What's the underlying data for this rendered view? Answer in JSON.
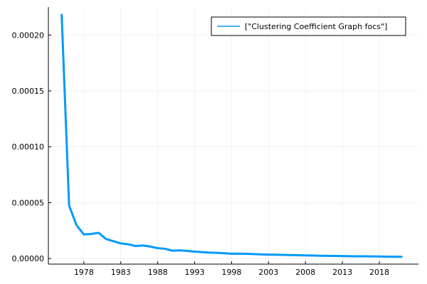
{
  "chart_data": {
    "type": "line",
    "title": "",
    "xlabel": "",
    "ylabel": "",
    "xlim": [
      1973.2,
      2023.3
    ],
    "ylim": [
      -5e-06,
      0.000225
    ],
    "x_ticks": [
      1978,
      1983,
      1988,
      1993,
      1998,
      2003,
      2008,
      2013,
      2018
    ],
    "x_tick_labels": [
      "1978",
      "1983",
      "1988",
      "1993",
      "1998",
      "2003",
      "2008",
      "2013",
      "2018"
    ],
    "y_ticks": [
      0.0,
      5e-05,
      0.0001,
      0.00015,
      0.0002
    ],
    "y_tick_labels": [
      "0.00000",
      "0.00005",
      "0.00010",
      "0.00015",
      "0.00020"
    ],
    "grid": true,
    "legend_position": "top-right",
    "series": [
      {
        "name": "[\"Clustering Coefficient Graph focs\"]",
        "color": "#009AFA",
        "x": [
          1975,
          1976,
          1977,
          1978,
          1979,
          1980,
          1981,
          1982,
          1983,
          1984,
          1985,
          1986,
          1987,
          1988,
          1989,
          1990,
          1991,
          1992,
          1993,
          1994,
          1995,
          1996,
          1997,
          1998,
          1999,
          2000,
          2001,
          2002,
          2003,
          2004,
          2005,
          2006,
          2007,
          2008,
          2009,
          2010,
          2011,
          2012,
          2013,
          2014,
          2015,
          2016,
          2017,
          2018,
          2019,
          2020,
          2021
        ],
        "y": [
          0.000218,
          4.75e-05,
          3e-05,
          2.15e-05,
          2.2e-05,
          2.3e-05,
          1.75e-05,
          1.55e-05,
          1.35e-05,
          1.28e-05,
          1.12e-05,
          1.17e-05,
          1.07e-05,
          9.3e-06,
          8.7e-06,
          7e-06,
          7.3e-06,
          6.8e-06,
          6.2e-06,
          5.7e-06,
          5.3e-06,
          5.1e-06,
          4.8e-06,
          4.3e-06,
          4.4e-06,
          4.2e-06,
          4e-06,
          3.7e-06,
          3.5e-06,
          3.4e-06,
          3.3e-06,
          3.1e-06,
          3e-06,
          2.8e-06,
          2.7e-06,
          2.5e-06,
          2.4e-06,
          2.3e-06,
          2.2e-06,
          2.1e-06,
          2e-06,
          2e-06,
          1.9e-06,
          1.8e-06,
          1.7e-06,
          1.6e-06,
          1.6e-06
        ]
      }
    ]
  }
}
